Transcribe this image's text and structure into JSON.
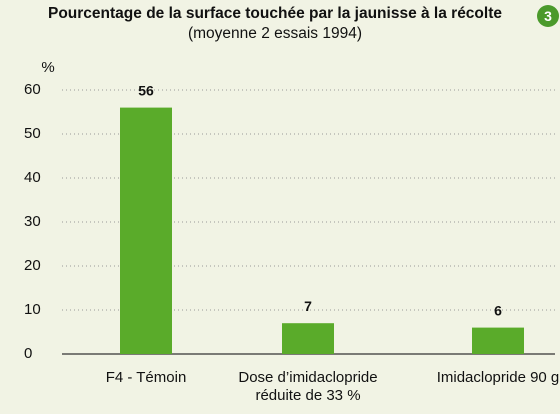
{
  "chart_data": {
    "type": "bar",
    "title": "Pourcentage de la surface touchée par la jaunisse à la récolte",
    "subtitle": "(moyenne 2 essais 1994)",
    "badge": "3",
    "y_label": "%",
    "categories": [
      "F4 - Témoin",
      "Dose d’imidaclopride réduite de 33 %",
      "Imidaclopride 90 g"
    ],
    "values": [
      56,
      7,
      6
    ],
    "color": "#5aab2a",
    "ylim": [
      0,
      60
    ],
    "yticks": [
      0,
      10,
      20,
      30,
      40,
      50,
      60
    ],
    "grid": true
  }
}
